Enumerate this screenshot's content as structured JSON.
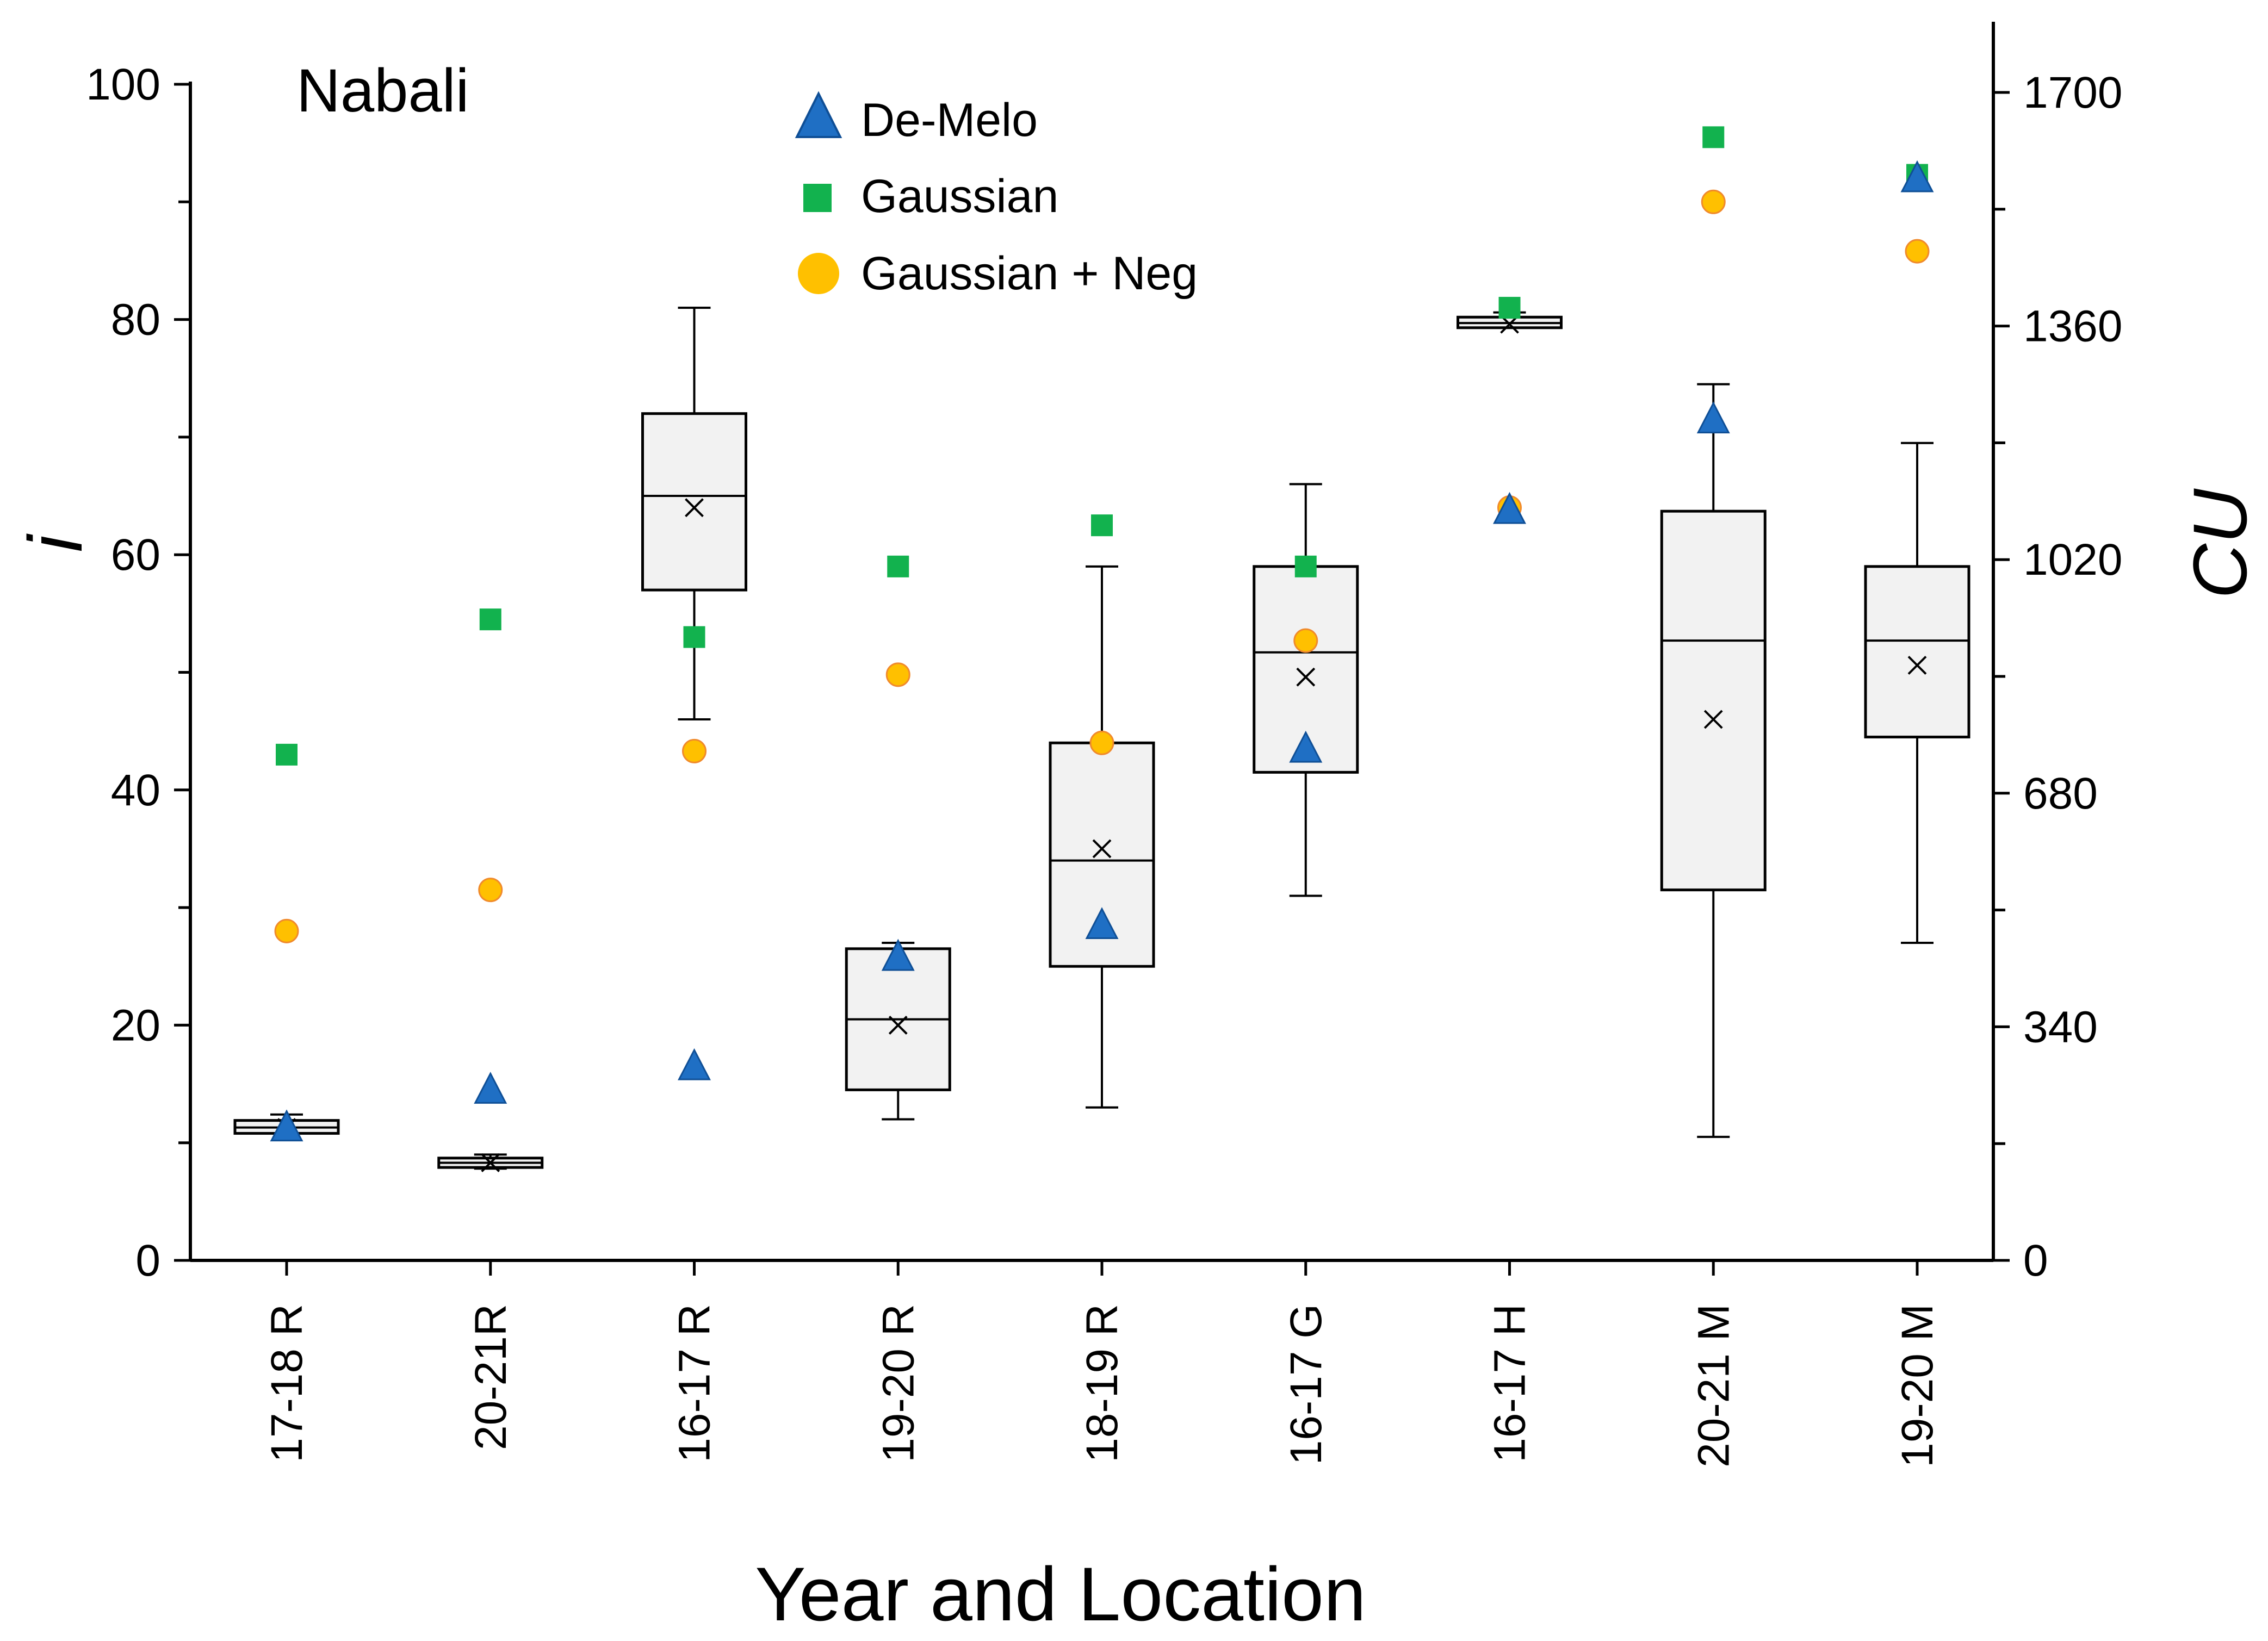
{
  "chart_data": {
    "type": "box",
    "title": "Nabali",
    "xlabel": "Year and Location",
    "ylabel": "i",
    "y2label": "CU",
    "ylim": [
      0,
      100
    ],
    "y2lim": [
      0,
      1700
    ],
    "yticks": [
      0,
      20,
      40,
      60,
      80,
      100
    ],
    "y2ticks": [
      0,
      340,
      680,
      1020,
      1360,
      1700
    ],
    "grid": false,
    "legend_position": "top-center",
    "categories": [
      "17-18 R",
      "20-21R",
      "16-17 R",
      "19-20 R",
      "18-19 R",
      "16-17 G",
      "16-17 H",
      "20-21 M",
      "19-20 M"
    ],
    "boxes": [
      {
        "min": 10.8,
        "q1": 10.8,
        "median": 11.3,
        "q3": 11.9,
        "max": 12.4,
        "mean": 11.3
      },
      {
        "min": 7.8,
        "q1": 7.9,
        "median": 8.3,
        "q3": 8.7,
        "max": 9.0,
        "mean": 8.3
      },
      {
        "min": 46,
        "q1": 57,
        "median": 65,
        "q3": 72,
        "max": 81,
        "mean": 64
      },
      {
        "min": 12,
        "q1": 14.5,
        "median": 20.5,
        "q3": 26.5,
        "max": 27,
        "mean": 20
      },
      {
        "min": 13,
        "q1": 25,
        "median": 34,
        "q3": 44,
        "max": 59,
        "mean": 35
      },
      {
        "min": 31,
        "q1": 41.5,
        "median": 51.7,
        "q3": 59,
        "max": 66,
        "mean": 49.6
      },
      {
        "min": 79.3,
        "q1": 79.3,
        "median": 79.7,
        "q3": 80.2,
        "max": 80.6,
        "mean": 79.6
      },
      {
        "min": 10.5,
        "q1": 31.5,
        "median": 52.7,
        "q3": 63.7,
        "max": 74.5,
        "mean": 46
      },
      {
        "min": 27,
        "q1": 44.5,
        "median": 52.7,
        "q3": 59,
        "max": 69.5,
        "mean": 50.6
      }
    ],
    "series": [
      {
        "name": "De-Melo",
        "marker": "triangle",
        "color": "#1f6fc4",
        "values": [
          11.3,
          14.5,
          16.5,
          25.8,
          28.5,
          43.5,
          63.8,
          71.5,
          92.0
        ]
      },
      {
        "name": "Gaussian",
        "marker": "square",
        "color": "#12b24e",
        "values": [
          43.0,
          54.5,
          53.0,
          59.0,
          62.5,
          59.0,
          81.0,
          95.5,
          92.3
        ]
      },
      {
        "name": "Gaussian + Neg",
        "marker": "circle",
        "color": "#ffc000",
        "values": [
          28.0,
          31.5,
          43.3,
          49.8,
          44.0,
          52.7,
          64.0,
          90.0,
          85.8
        ]
      }
    ]
  }
}
